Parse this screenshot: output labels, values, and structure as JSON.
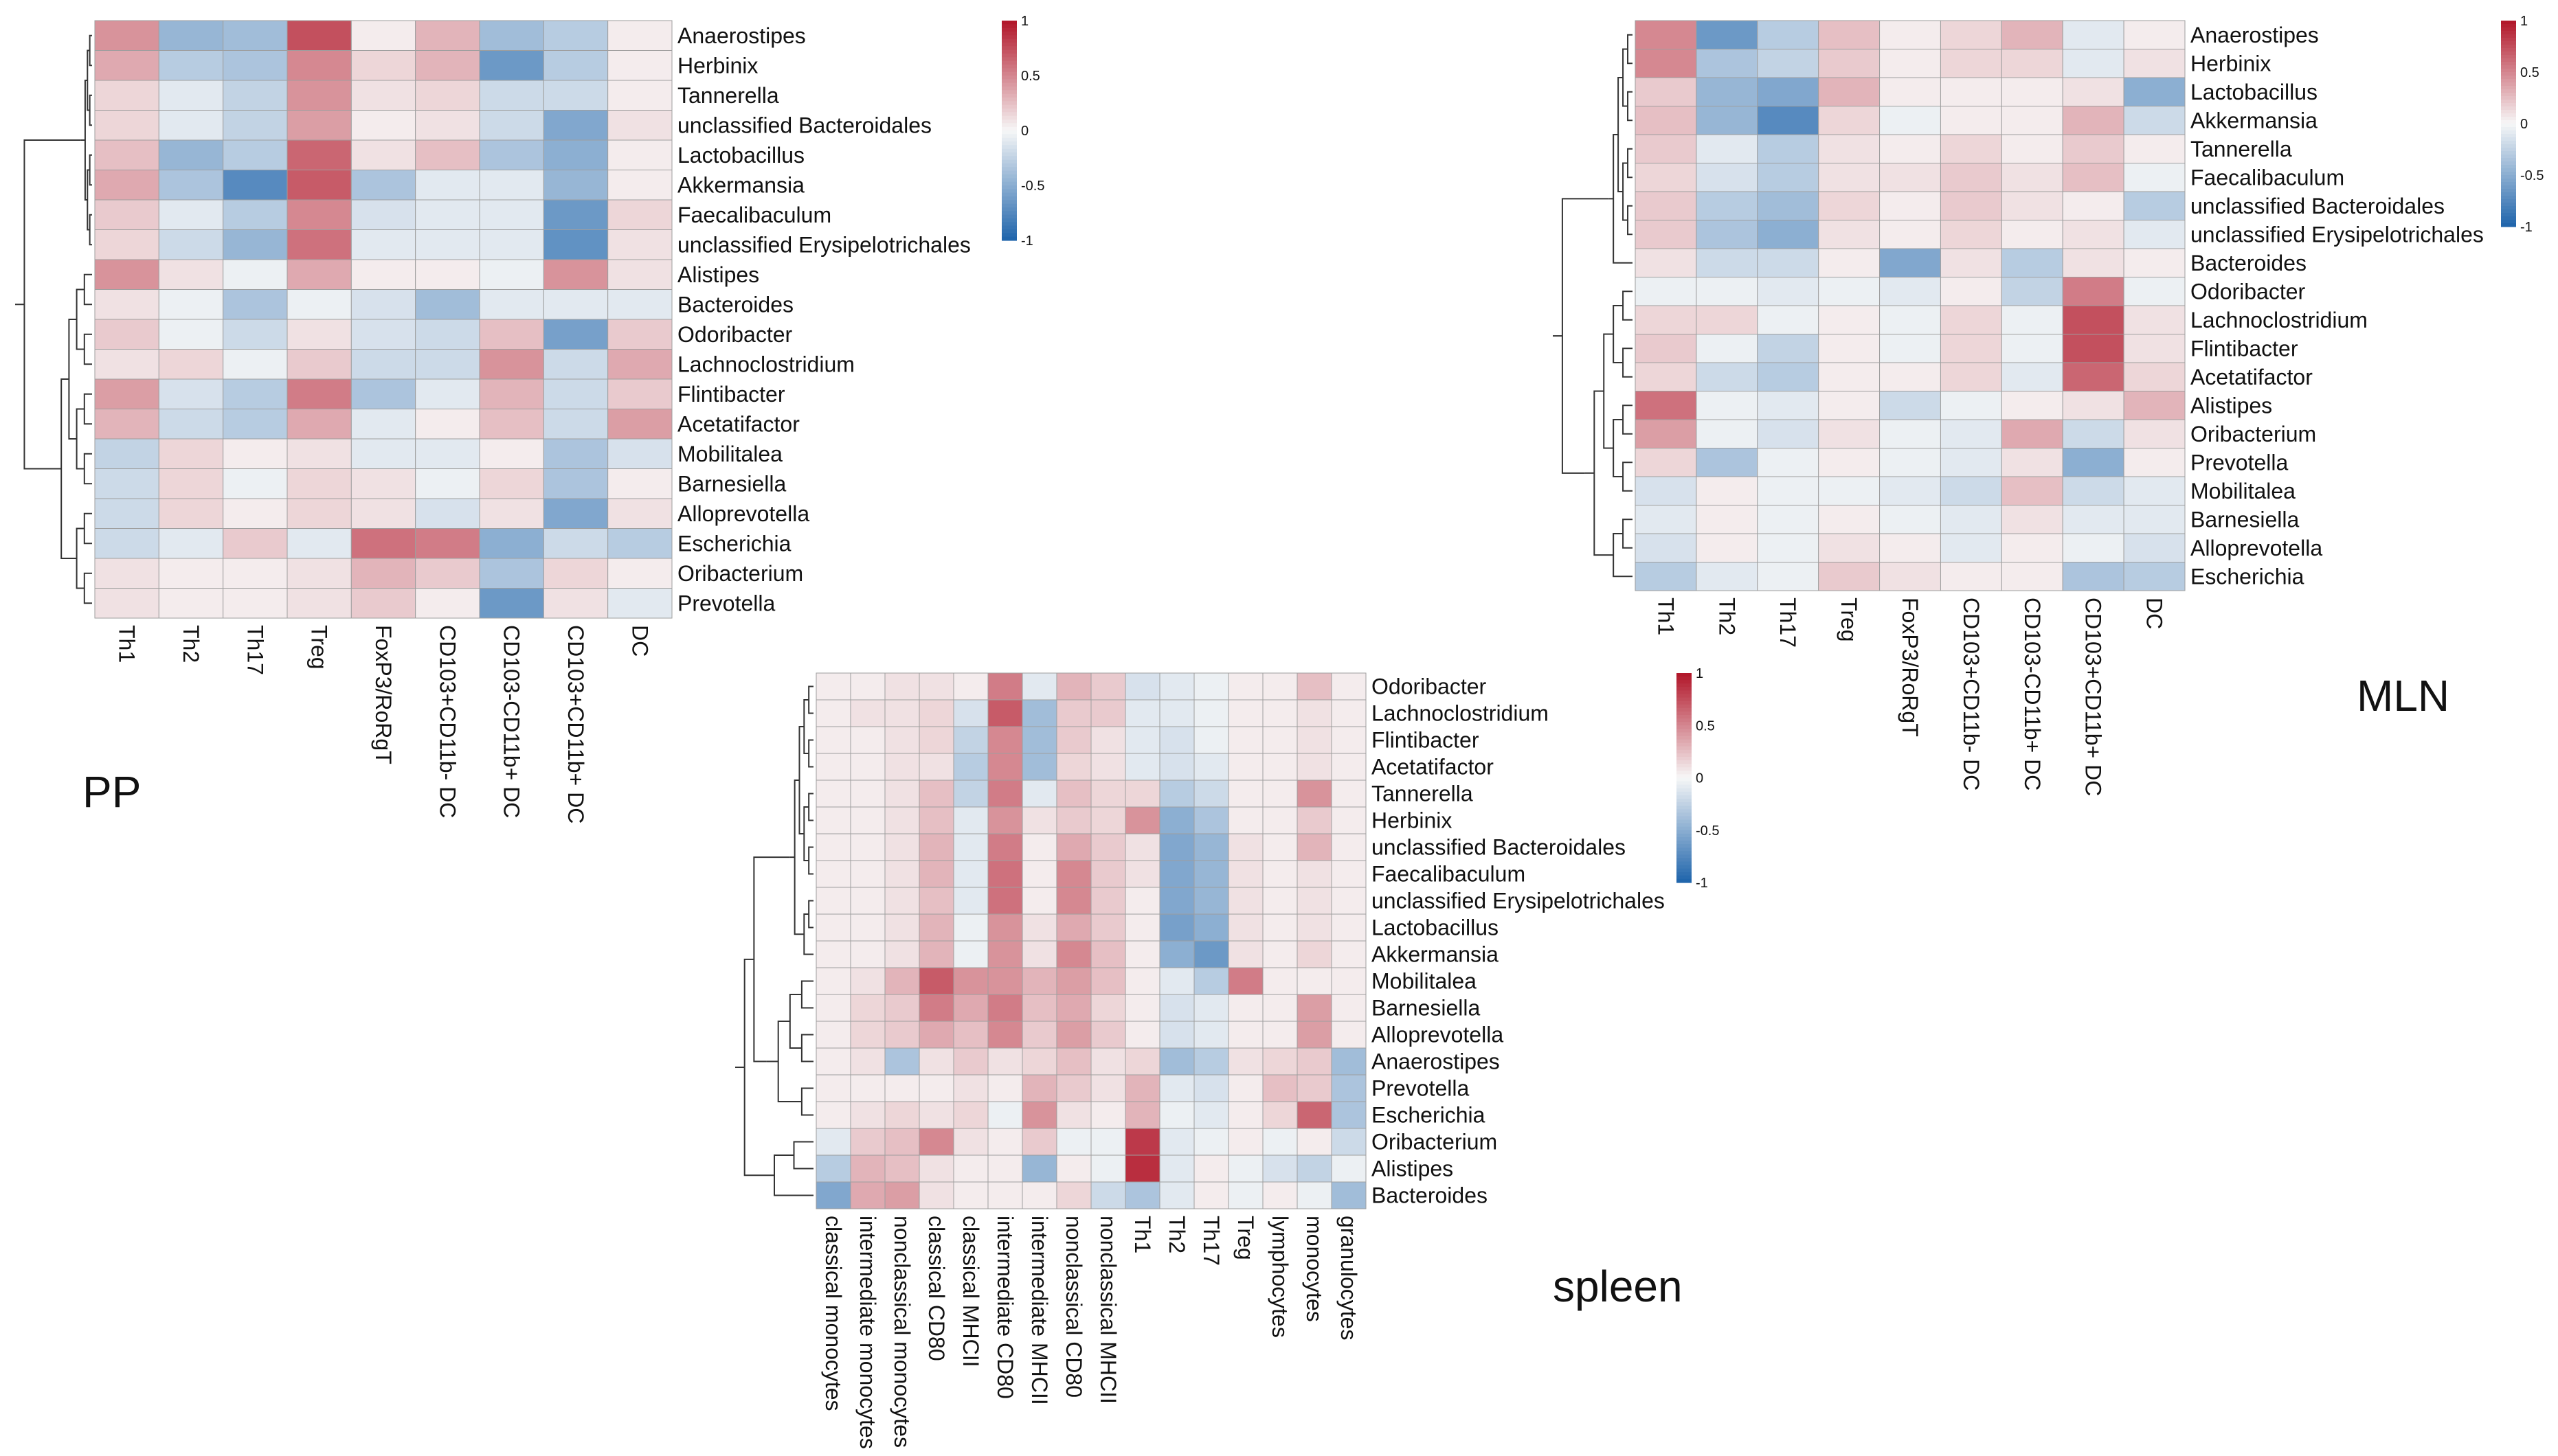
{
  "chart_data": [
    {
      "type": "heatmap",
      "title": "PP",
      "rows": [
        "Anaerostipes",
        "Herbinix",
        "Tannerella",
        "unclassified Bacteroidales",
        "Lactobacillus",
        "Akkermansia",
        "Faecalibaculum",
        "unclassified Erysipelotrichales",
        "Alistipes",
        "Bacteroides",
        "Odoribacter",
        "Lachnoclostridium",
        "Flintibacter",
        "Acetatifactor",
        "Mobilitalea",
        "Barnesiella",
        "Alloprevotella",
        "Escherichia",
        "Oribacterium",
        "Prevotella"
      ],
      "columns": [
        "Th1",
        "Th2",
        "Th17",
        "Treg",
        "FoxP3/RoRgT",
        "CD103+CD11b- DC",
        "CD103-CD11b+ DC",
        "CD103+CD11b+ DC",
        "DC"
      ],
      "values": [
        [
          0.45,
          -0.45,
          -0.4,
          0.75,
          0.05,
          0.3,
          -0.4,
          -0.3,
          0.05
        ],
        [
          0.35,
          -0.3,
          -0.35,
          0.5,
          0.15,
          0.3,
          -0.65,
          -0.3,
          0.05
        ],
        [
          0.15,
          -0.1,
          -0.25,
          0.45,
          0.1,
          0.15,
          -0.2,
          -0.2,
          0.05
        ],
        [
          0.15,
          -0.1,
          -0.25,
          0.4,
          0.05,
          0.1,
          -0.2,
          -0.55,
          0.1
        ],
        [
          0.25,
          -0.45,
          -0.3,
          0.65,
          0.1,
          0.25,
          -0.35,
          -0.5,
          0.05
        ],
        [
          0.35,
          -0.35,
          -0.75,
          0.7,
          -0.35,
          -0.1,
          -0.1,
          -0.45,
          0.05
        ],
        [
          0.2,
          -0.1,
          -0.3,
          0.5,
          -0.15,
          -0.1,
          -0.1,
          -0.65,
          0.15
        ],
        [
          0.15,
          -0.2,
          -0.45,
          0.6,
          -0.1,
          -0.1,
          -0.1,
          -0.7,
          0.1
        ],
        [
          0.45,
          0.1,
          -0.05,
          0.35,
          0.05,
          0.05,
          -0.05,
          0.45,
          0.1
        ],
        [
          0.1,
          -0.05,
          -0.35,
          -0.05,
          -0.15,
          -0.4,
          -0.1,
          -0.1,
          -0.1
        ],
        [
          0.2,
          -0.05,
          -0.2,
          0.1,
          -0.15,
          -0.2,
          0.25,
          -0.6,
          0.2
        ],
        [
          0.1,
          0.15,
          -0.05,
          0.2,
          -0.2,
          -0.2,
          0.45,
          -0.2,
          0.35
        ],
        [
          0.4,
          -0.15,
          -0.3,
          0.55,
          -0.35,
          -0.1,
          0.3,
          -0.2,
          0.2
        ],
        [
          0.3,
          -0.2,
          -0.3,
          0.35,
          -0.1,
          0.05,
          0.25,
          -0.2,
          0.4
        ],
        [
          -0.25,
          0.15,
          0.05,
          0.1,
          -0.1,
          -0.1,
          0.05,
          -0.35,
          -0.15
        ],
        [
          -0.2,
          0.15,
          -0.05,
          0.15,
          0.1,
          -0.05,
          0.15,
          -0.35,
          0.05
        ],
        [
          -0.2,
          0.15,
          0.05,
          0.15,
          0.1,
          -0.15,
          0.1,
          -0.55,
          0.1
        ],
        [
          -0.2,
          -0.1,
          0.2,
          -0.1,
          0.6,
          0.55,
          -0.5,
          -0.2,
          -0.3
        ],
        [
          0.1,
          0.05,
          0.05,
          0.1,
          0.3,
          0.2,
          -0.35,
          0.15,
          0.05
        ],
        [
          0.1,
          0.05,
          0.05,
          0.1,
          0.2,
          0.05,
          -0.65,
          0.1,
          -0.1
        ]
      ],
      "colorbar": {
        "ticks": [
          "1",
          "0.5",
          "0",
          "-0.5",
          "-1"
        ],
        "low": "#2166ac",
        "mid": "#f7f7f7",
        "high": "#b2182b"
      }
    },
    {
      "type": "heatmap",
      "title": "MLN",
      "rows": [
        "Anaerostipes",
        "Herbinix",
        "Lactobacillus",
        "Akkermansia",
        "Tannerella",
        "Faecalibaculum",
        "unclassified Bacteroidales",
        "unclassified Erysipelotrichales",
        "Bacteroides",
        "Odoribacter",
        "Lachnoclostridium",
        "Flintibacter",
        "Acetatifactor",
        "Alistipes",
        "Oribacterium",
        "Prevotella",
        "Mobilitalea",
        "Barnesiella",
        "Alloprevotella",
        "Escherichia"
      ],
      "columns": [
        "Th1",
        "Th2",
        "Th17",
        "Treg",
        "FoxP3/RoRgT",
        "CD103+CD11b- DC",
        "CD103-CD11b+ DC",
        "CD103+CD11b+ DC",
        "DC"
      ],
      "values": [
        [
          0.5,
          -0.65,
          -0.3,
          0.25,
          0.05,
          0.15,
          0.3,
          -0.1,
          0.05
        ],
        [
          0.5,
          -0.35,
          -0.25,
          0.2,
          0.05,
          0.15,
          0.15,
          -0.1,
          0.1
        ],
        [
          0.2,
          -0.45,
          -0.55,
          0.3,
          0.05,
          0.05,
          0.05,
          0.1,
          -0.5
        ],
        [
          0.25,
          -0.45,
          -0.75,
          0.15,
          -0.05,
          0.05,
          0.05,
          0.3,
          -0.2
        ],
        [
          0.2,
          -0.1,
          -0.3,
          0.1,
          0.05,
          0.15,
          0.05,
          0.2,
          0.05
        ],
        [
          0.15,
          -0.15,
          -0.3,
          0.1,
          0.1,
          0.2,
          0.1,
          0.25,
          -0.05
        ],
        [
          0.2,
          -0.3,
          -0.4,
          0.15,
          0.05,
          0.2,
          0.1,
          0.05,
          -0.3
        ],
        [
          0.2,
          -0.35,
          -0.5,
          0.1,
          0.05,
          0.15,
          0.05,
          0.1,
          -0.1
        ],
        [
          0.1,
          -0.2,
          -0.2,
          0.05,
          -0.55,
          0.1,
          -0.3,
          0.1,
          0.05
        ],
        [
          -0.05,
          -0.05,
          -0.1,
          -0.05,
          -0.1,
          0.05,
          -0.25,
          0.55,
          -0.05
        ],
        [
          0.15,
          0.15,
          -0.05,
          0.05,
          -0.05,
          0.15,
          -0.05,
          0.75,
          0.1
        ],
        [
          0.2,
          -0.05,
          -0.25,
          0.05,
          -0.05,
          0.15,
          -0.05,
          0.75,
          0.1
        ],
        [
          0.15,
          -0.2,
          -0.3,
          0.05,
          0.05,
          0.15,
          -0.1,
          0.65,
          0.15
        ],
        [
          0.6,
          -0.05,
          -0.1,
          0.05,
          -0.2,
          -0.05,
          0.05,
          0.1,
          0.3
        ],
        [
          0.4,
          -0.05,
          -0.15,
          0.1,
          -0.05,
          -0.1,
          0.35,
          -0.2,
          0.1
        ],
        [
          0.15,
          -0.35,
          -0.05,
          0.05,
          -0.05,
          -0.1,
          0.1,
          -0.5,
          0.05
        ],
        [
          -0.15,
          0.05,
          -0.05,
          -0.05,
          -0.1,
          -0.2,
          0.25,
          -0.2,
          -0.1
        ],
        [
          -0.1,
          0.05,
          -0.05,
          0.05,
          -0.05,
          -0.1,
          0.1,
          -0.1,
          -0.1
        ],
        [
          -0.15,
          0.05,
          -0.05,
          0.1,
          0.05,
          -0.1,
          0.05,
          -0.05,
          -0.15
        ],
        [
          -0.3,
          -0.1,
          -0.05,
          0.2,
          0.1,
          0.05,
          0.05,
          -0.35,
          -0.3
        ]
      ],
      "colorbar": {
        "ticks": [
          "1",
          "0.5",
          "0",
          "-0.5",
          "-1"
        ],
        "low": "#2166ac",
        "mid": "#f7f7f7",
        "high": "#b2182b"
      }
    },
    {
      "type": "heatmap",
      "title": "spleen",
      "rows": [
        "Odoribacter",
        "Lachnoclostridium",
        "Flintibacter",
        "Acetatifactor",
        "Tannerella",
        "Herbinix",
        "unclassified Bacteroidales",
        "Faecalibaculum",
        "unclassified Erysipelotrichales",
        "Lactobacillus",
        "Akkermansia",
        "Mobilitalea",
        "Barnesiella",
        "Alloprevotella",
        "Anaerostipes",
        "Prevotella",
        "Escherichia",
        "Oribacterium",
        "Alistipes",
        "Bacteroides"
      ],
      "columns": [
        "classical monocytes",
        "intermediate monocytes",
        "nonclassical monocytes",
        "classical CD80",
        "classical MHCII",
        "intermediate CD80",
        "intermediate MHCII",
        "nonclassical CD80",
        "nonclassical MHCII",
        "Th1",
        "Th2",
        "Th17",
        "Treg",
        "lymphocytes",
        "monocytes",
        "granulocytes"
      ],
      "values": [
        [
          0.05,
          0.05,
          0.1,
          0.1,
          0.05,
          0.55,
          -0.1,
          0.3,
          0.2,
          -0.15,
          -0.1,
          -0.05,
          0.05,
          0.05,
          0.25,
          0.05
        ],
        [
          0.05,
          0.1,
          0.1,
          0.15,
          -0.15,
          0.7,
          -0.4,
          0.2,
          0.2,
          -0.1,
          -0.1,
          -0.05,
          0.05,
          0.05,
          0.1,
          0.05
        ],
        [
          0.05,
          0.05,
          0.1,
          0.15,
          -0.25,
          0.5,
          -0.4,
          0.2,
          0.1,
          -0.1,
          -0.15,
          -0.05,
          0.05,
          0.05,
          0.1,
          0.05
        ],
        [
          0.05,
          0.05,
          0.1,
          0.1,
          -0.3,
          0.5,
          -0.4,
          0.15,
          0.1,
          -0.1,
          -0.15,
          -0.1,
          0.05,
          0.05,
          0.1,
          0.05
        ],
        [
          0.05,
          0.05,
          0.1,
          0.25,
          -0.25,
          0.55,
          -0.1,
          0.25,
          0.15,
          0.15,
          -0.3,
          -0.2,
          0.05,
          0.05,
          0.45,
          0.05
        ],
        [
          0.05,
          0.05,
          0.1,
          0.25,
          -0.1,
          0.45,
          0.1,
          0.2,
          0.15,
          0.45,
          -0.5,
          -0.35,
          0.05,
          0.05,
          0.2,
          0.05
        ],
        [
          0.05,
          0.05,
          0.1,
          0.3,
          -0.1,
          0.55,
          0.05,
          0.35,
          0.2,
          0.1,
          -0.55,
          -0.45,
          0.1,
          0.05,
          0.3,
          0.05
        ],
        [
          0.05,
          0.05,
          0.1,
          0.3,
          -0.1,
          0.6,
          0.05,
          0.5,
          0.2,
          0.1,
          -0.55,
          -0.45,
          0.1,
          0.05,
          0.1,
          0.05
        ],
        [
          0.05,
          0.05,
          0.1,
          0.25,
          -0.1,
          0.6,
          0.05,
          0.5,
          0.2,
          0.05,
          -0.55,
          -0.45,
          0.1,
          0.05,
          0.1,
          0.05
        ],
        [
          0.05,
          0.05,
          0.1,
          0.3,
          -0.05,
          0.45,
          0.1,
          0.35,
          0.2,
          0.05,
          -0.6,
          -0.5,
          0.1,
          0.05,
          0.1,
          0.05
        ],
        [
          0.05,
          0.05,
          0.1,
          0.3,
          -0.05,
          0.45,
          0.1,
          0.5,
          0.25,
          0.05,
          -0.5,
          -0.65,
          0.1,
          0.05,
          0.15,
          0.05
        ],
        [
          0.05,
          0.1,
          0.3,
          0.7,
          0.45,
          0.45,
          0.3,
          0.4,
          0.25,
          0.05,
          -0.1,
          -0.3,
          0.55,
          0.05,
          0.05,
          0.05
        ],
        [
          0.05,
          0.15,
          0.2,
          0.55,
          0.35,
          0.55,
          0.25,
          0.35,
          0.15,
          0.05,
          -0.15,
          -0.1,
          0.05,
          0.05,
          0.4,
          0.05
        ],
        [
          0.05,
          0.15,
          0.2,
          0.35,
          0.25,
          0.5,
          0.2,
          0.4,
          0.2,
          0.05,
          -0.15,
          -0.1,
          0.05,
          0.05,
          0.4,
          0.05
        ],
        [
          0.05,
          0.1,
          -0.35,
          0.1,
          0.2,
          0.1,
          0.15,
          0.25,
          0.1,
          0.15,
          -0.4,
          -0.3,
          0.1,
          0.15,
          0.2,
          -0.4
        ],
        [
          0.05,
          0.05,
          0.05,
          0.05,
          0.1,
          0.05,
          0.3,
          0.2,
          0.1,
          0.3,
          -0.1,
          -0.15,
          0.05,
          0.25,
          0.2,
          -0.35
        ],
        [
          0.05,
          0.1,
          0.15,
          0.1,
          0.15,
          -0.05,
          0.45,
          0.1,
          0.05,
          0.3,
          -0.05,
          -0.1,
          0.05,
          0.15,
          0.65,
          -0.35
        ],
        [
          -0.1,
          0.2,
          0.25,
          0.5,
          0.1,
          0.05,
          0.2,
          -0.05,
          -0.05,
          0.85,
          -0.1,
          -0.05,
          0.05,
          -0.05,
          0.05,
          -0.2
        ],
        [
          -0.3,
          0.3,
          0.25,
          0.1,
          0.05,
          0.05,
          -0.45,
          0.05,
          -0.05,
          0.9,
          -0.1,
          0.05,
          -0.05,
          -0.15,
          -0.25,
          -0.05
        ],
        [
          -0.55,
          0.35,
          0.4,
          0.1,
          0.05,
          0.05,
          0.05,
          0.15,
          -0.2,
          -0.35,
          -0.1,
          0.05,
          -0.05,
          0.05,
          -0.05,
          -0.4
        ]
      ],
      "colorbar": {
        "ticks": [
          "1",
          "0.5",
          "0",
          "-0.5",
          "-1"
        ],
        "low": "#2166ac",
        "mid": "#f7f7f7",
        "high": "#b2182b"
      }
    }
  ]
}
